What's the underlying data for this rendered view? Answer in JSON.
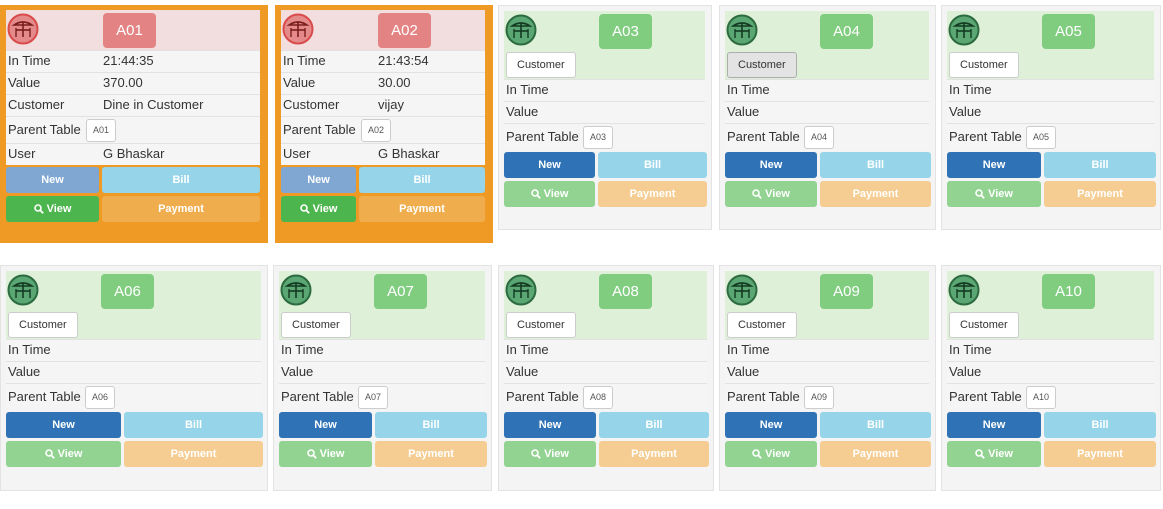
{
  "labels": {
    "in_time": "In Time",
    "value": "Value",
    "customer": "Customer",
    "parent_table": "Parent Table",
    "user": "User",
    "customer_button": "Customer",
    "new_button": "New",
    "bill_button": "Bill",
    "view_button": "View",
    "payment_button": "Payment"
  },
  "colors": {
    "occupied_frame": "#ee9a25",
    "occupied_header": "#f2dede",
    "occupied_code": "#e48383",
    "free_header": "#dff0d8",
    "free_code": "#80cd80",
    "new": "#2f73b6",
    "bill": "#96d4e9",
    "view": "#4db54d",
    "payment": "#efad4d"
  },
  "tables": [
    {
      "code": "A01",
      "status": "occupied",
      "in_time": "21:44:35",
      "value": "370.00",
      "customer": "Dine in Customer",
      "parent": "A01",
      "user": "G Bhaskar",
      "icon": "restaurant-table-icon"
    },
    {
      "code": "A02",
      "status": "occupied",
      "in_time": "21:43:54",
      "value": "30.00",
      "customer": "vijay",
      "parent": "A02",
      "user": "G Bhaskar",
      "icon": "restaurant-table-icon"
    },
    {
      "code": "A03",
      "status": "free",
      "in_time": "",
      "value": "",
      "parent": "A03",
      "icon": "restaurant-table-icon"
    },
    {
      "code": "A04",
      "status": "free",
      "in_time": "",
      "value": "",
      "parent": "A04",
      "icon": "restaurant-table-icon",
      "customer_pressed": true
    },
    {
      "code": "A05",
      "status": "free",
      "in_time": "",
      "value": "",
      "parent": "A05",
      "icon": "restaurant-table-icon"
    },
    {
      "code": "A06",
      "status": "free",
      "in_time": "",
      "value": "",
      "parent": "A06",
      "icon": "restaurant-table-icon"
    },
    {
      "code": "A07",
      "status": "free",
      "in_time": "",
      "value": "",
      "parent": "A07",
      "icon": "restaurant-table-icon"
    },
    {
      "code": "A08",
      "status": "free",
      "in_time": "",
      "value": "",
      "parent": "A08",
      "icon": "restaurant-table-icon"
    },
    {
      "code": "A09",
      "status": "free",
      "in_time": "",
      "value": "",
      "parent": "A09",
      "icon": "restaurant-table-icon"
    },
    {
      "code": "A10",
      "status": "free",
      "in_time": "",
      "value": "",
      "parent": "A10",
      "icon": "restaurant-table-icon"
    }
  ]
}
